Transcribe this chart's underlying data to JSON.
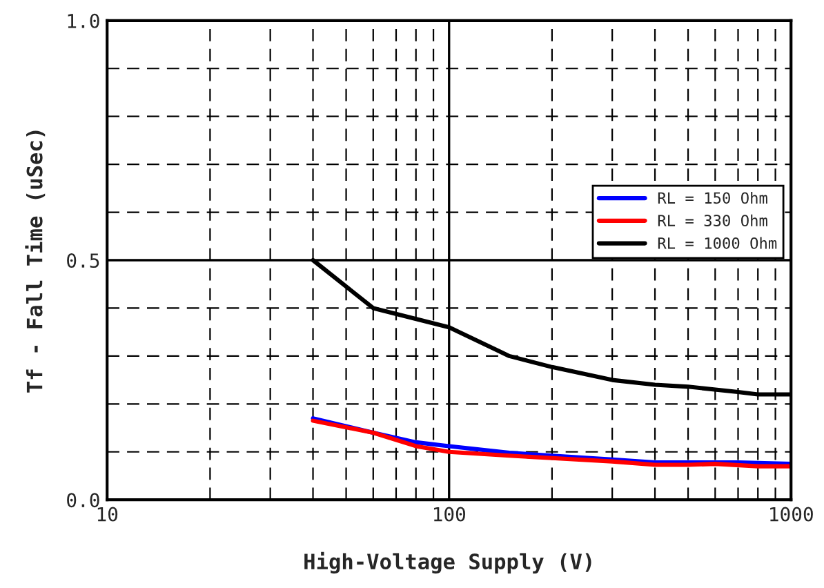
{
  "chart_data": {
    "type": "line",
    "xlabel": "High-Voltage Supply (V)",
    "ylabel": "Tf - Fall Time (uSec)",
    "log": "x",
    "grid": true,
    "legend": "right",
    "marker": "none",
    "line_style": "solid",
    "xlim": [
      10,
      1000
    ],
    "ylim": [
      0,
      1.0
    ],
    "xticks": [
      {
        "value": 10,
        "label": "10"
      },
      {
        "value": 20,
        "label": null
      },
      {
        "value": 30,
        "label": null
      },
      {
        "value": 40,
        "label": null
      },
      {
        "value": 50,
        "label": null
      },
      {
        "value": 60,
        "label": null
      },
      {
        "value": 70,
        "label": null
      },
      {
        "value": 80,
        "label": null
      },
      {
        "value": 90,
        "label": null
      },
      {
        "value": 100,
        "label": "100"
      },
      {
        "value": 200,
        "label": null
      },
      {
        "value": 300,
        "label": null
      },
      {
        "value": 400,
        "label": null
      },
      {
        "value": 500,
        "label": null
      },
      {
        "value": 600,
        "label": null
      },
      {
        "value": 700,
        "label": null
      },
      {
        "value": 800,
        "label": null
      },
      {
        "value": 900,
        "label": null
      },
      {
        "value": 1000,
        "label": "1000"
      }
    ],
    "yticks": [
      {
        "value": 0,
        "label": "0.0"
      },
      {
        "value": 0.1,
        "label": null
      },
      {
        "value": 0.2,
        "label": null
      },
      {
        "value": 0.3,
        "label": null
      },
      {
        "value": 0.4,
        "label": null
      },
      {
        "value": 0.5,
        "label": "0.5"
      },
      {
        "value": 0.6,
        "label": null
      },
      {
        "value": 0.7,
        "label": null
      },
      {
        "value": 0.8,
        "label": null
      },
      {
        "value": 0.9,
        "label": null
      },
      {
        "value": 1.0,
        "label": "1.0"
      }
    ],
    "series": [
      {
        "name": "RL = 150 Ohm",
        "color": "#0000ff",
        "x": [
          40,
          60,
          80,
          100,
          150,
          200,
          300,
          400,
          500,
          700,
          1000
        ],
        "values": [
          0.17,
          0.14,
          0.12,
          0.112,
          0.098,
          0.092,
          0.084,
          0.078,
          0.078,
          0.078,
          0.075
        ]
      },
      {
        "name": "RL = 330 Ohm",
        "color": "#ff0000",
        "x": [
          40,
          60,
          80,
          100,
          150,
          200,
          300,
          400,
          500,
          600,
          800,
          1000
        ],
        "values": [
          0.165,
          0.14,
          0.112,
          0.1,
          0.092,
          0.087,
          0.08,
          0.073,
          0.073,
          0.075,
          0.07,
          0.07
        ]
      },
      {
        "name": "RL = 1000 Ohm",
        "color": "#000000",
        "x": [
          40,
          60,
          100,
          150,
          200,
          300,
          400,
          500,
          700,
          800,
          1000
        ],
        "values": [
          0.5,
          0.4,
          0.36,
          0.3,
          0.277,
          0.25,
          0.24,
          0.236,
          0.225,
          0.22,
          0.22
        ]
      }
    ]
  }
}
